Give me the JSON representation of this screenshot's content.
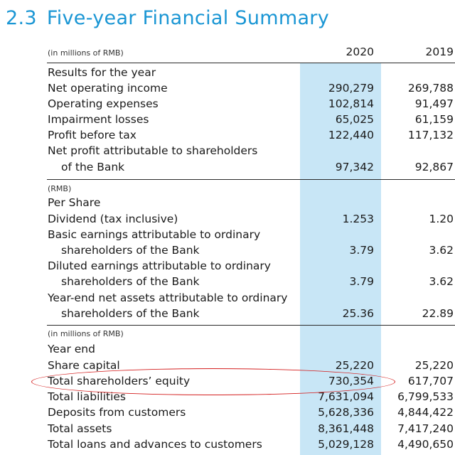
{
  "title": {
    "number": "2.3",
    "text": "Five-year Financial Summary"
  },
  "header": {
    "unit": "(in millions of RMB)",
    "col1": "2020",
    "col2": "2019"
  },
  "results": {
    "heading": "Results for the year",
    "rows": [
      {
        "label": "Net operating income",
        "v1": "290,279",
        "v2": "269,788"
      },
      {
        "label": "Operating expenses",
        "v1": "102,814",
        "v2": "91,497"
      },
      {
        "label": "Impairment losses",
        "v1": "65,025",
        "v2": "61,159"
      },
      {
        "label": "Profit before tax",
        "v1": "122,440",
        "v2": "117,132"
      },
      {
        "label": "Net profit attributable to shareholders",
        "v1": "",
        "v2": ""
      },
      {
        "label": "of the Bank",
        "v1": "97,342",
        "v2": "92,867"
      }
    ]
  },
  "per_share": {
    "unit": "(RMB)",
    "heading": "Per Share",
    "rows": [
      {
        "label": "Dividend (tax inclusive)",
        "v1": "1.253",
        "v2": "1.20"
      },
      {
        "label": "Basic earnings attributable to ordinary",
        "v1": "",
        "v2": ""
      },
      {
        "label": "shareholders of the Bank",
        "v1": "3.79",
        "v2": "3.62"
      },
      {
        "label": "Diluted earnings attributable to ordinary",
        "v1": "",
        "v2": ""
      },
      {
        "label": "shareholders of the Bank",
        "v1": "3.79",
        "v2": "3.62"
      },
      {
        "label": "Year-end net assets attributable to ordinary",
        "v1": "",
        "v2": ""
      },
      {
        "label": "shareholders of the Bank",
        "v1": "25.36",
        "v2": "22.89"
      }
    ]
  },
  "year_end": {
    "unit": "(in millions of RMB)",
    "heading": "Year end",
    "rows": [
      {
        "label": "Share capital",
        "v1": "25,220",
        "v2": "25,220"
      },
      {
        "label": "Total shareholders’ equity",
        "v1": "730,354",
        "v2": "617,707"
      },
      {
        "label": "Total liabilities",
        "v1": "7,631,094",
        "v2": "6,799,533"
      },
      {
        "label": "Deposits from customers",
        "v1": "5,628,336",
        "v2": "4,844,422"
      },
      {
        "label": "Total assets",
        "v1": "8,361,448",
        "v2": "7,417,240"
      },
      {
        "label": "Total loans and advances to customers",
        "v1": "5,029,128",
        "v2": "4,490,650"
      }
    ]
  }
}
